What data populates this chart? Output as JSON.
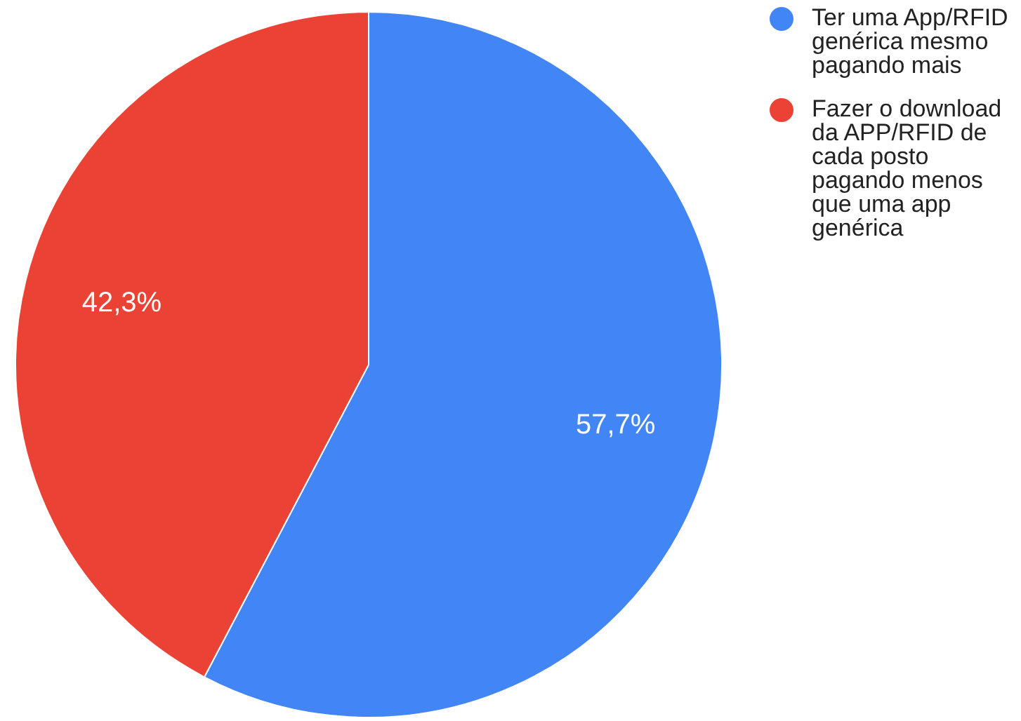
{
  "chart_data": {
    "type": "pie",
    "categories": [
      "Ter uma App/RFID genérica mesmo pagando mais",
      "Fazer o download da APP/RFID de cada posto pagando menos que uma app genérica"
    ],
    "values": [
      57.7,
      42.3
    ],
    "colors": [
      "#4285f4",
      "#ea4335"
    ],
    "value_labels": [
      "57,7%",
      "42,3%"
    ],
    "legend": "top right"
  }
}
